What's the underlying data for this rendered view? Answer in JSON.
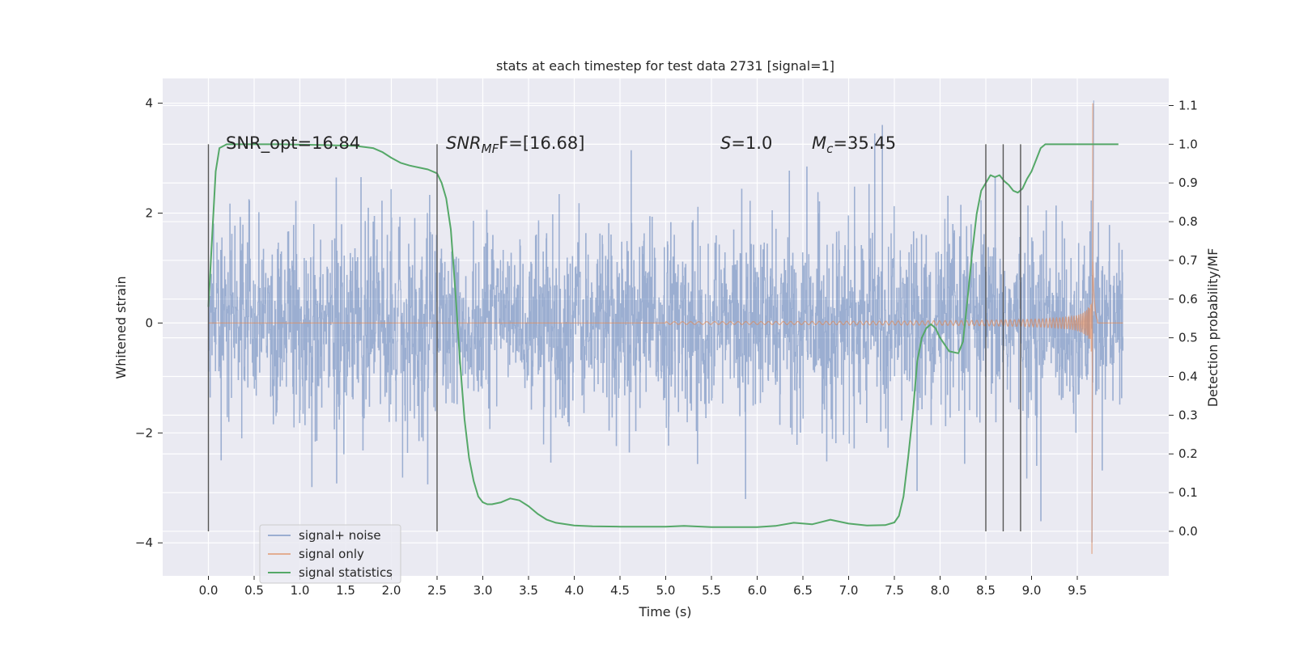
{
  "chart_data": {
    "type": "line",
    "title": "stats at each timestep for test data 2731 [signal=1]",
    "xlabel": "Time (s)",
    "ylabel": "Whitened strain",
    "y2label": "Detection probability/MF",
    "xlim": [
      -0.5,
      10.5
    ],
    "ylim": [
      -4.6,
      4.45
    ],
    "y2lim": [
      -0.115,
      1.17
    ],
    "x_ticks": [
      "0.0",
      "0.5",
      "1.0",
      "1.5",
      "2.0",
      "2.5",
      "3.0",
      "3.5",
      "4.0",
      "4.5",
      "5.0",
      "5.5",
      "6.0",
      "6.5",
      "7.0",
      "7.5",
      "8.0",
      "8.5",
      "9.0",
      "9.5"
    ],
    "y_ticks": [
      "−4",
      "−2",
      "0",
      "2",
      "4"
    ],
    "y2_ticks": [
      "0.0",
      "0.1",
      "0.2",
      "0.3",
      "0.4",
      "0.5",
      "0.6",
      "0.7",
      "0.8",
      "0.9",
      "1.0",
      "1.1"
    ],
    "grid": true,
    "legend_position": "lower-left",
    "annotations": {
      "snr_opt": "SNR_opt=16.84",
      "snr_mf_a": "SNR",
      "snr_mf_sub": "MF",
      "snr_mf_b": "F=[16.68]",
      "s_a": "S",
      "s_b": "=1.0",
      "mc_a": "M",
      "mc_sub": "c",
      "mc_b": "=35.45"
    },
    "vlines_x": [
      0.0,
      2.5,
      8.5,
      8.69,
      8.88
    ],
    "series": [
      {
        "name": "signal+ noise",
        "color": "#4c72b0",
        "style": "noise band",
        "duration_s": 10.0,
        "typical_range": [
          -1.5,
          1.9
        ],
        "peak_range": [
          -4.0,
          4.05
        ],
        "x_peak_max": 9.68,
        "y_peak_max": 4.05,
        "x_peak_min": 9.66,
        "y_peak_min": -4.0
      },
      {
        "name": "signal only",
        "color": "#dd8452",
        "style": "chirp",
        "onset_s": 5.0,
        "merger_s": 9.67,
        "peak_range": [
          -4.2,
          4.0
        ]
      },
      {
        "name": "signal statistics",
        "color": "#55a868",
        "axis": "right",
        "x": [
          0.0,
          0.05,
          0.08,
          0.12,
          0.2,
          0.4,
          0.8,
          1.2,
          1.6,
          1.8,
          1.9,
          2.0,
          2.1,
          2.2,
          2.3,
          2.4,
          2.5,
          2.55,
          2.6,
          2.65,
          2.7,
          2.75,
          2.8,
          2.85,
          2.9,
          2.95,
          3.0,
          3.05,
          3.1,
          3.2,
          3.3,
          3.4,
          3.5,
          3.6,
          3.7,
          3.8,
          4.0,
          4.2,
          4.5,
          5.0,
          5.2,
          5.5,
          6.0,
          6.2,
          6.4,
          6.6,
          6.8,
          7.0,
          7.2,
          7.4,
          7.5,
          7.55,
          7.6,
          7.65,
          7.7,
          7.75,
          7.8,
          7.85,
          7.9,
          7.95,
          8.0,
          8.1,
          8.2,
          8.25,
          8.3,
          8.35,
          8.4,
          8.45,
          8.5,
          8.55,
          8.6,
          8.65,
          8.7,
          8.75,
          8.8,
          8.85,
          8.9,
          8.95,
          9.0,
          9.05,
          9.1,
          9.15,
          9.2,
          9.3,
          9.5,
          9.7,
          9.95
        ],
        "values": [
          0.58,
          0.8,
          0.93,
          0.99,
          1.0,
          1.0,
          1.0,
          0.998,
          0.996,
          0.99,
          0.98,
          0.965,
          0.952,
          0.945,
          0.94,
          0.935,
          0.925,
          0.9,
          0.86,
          0.78,
          0.62,
          0.44,
          0.29,
          0.19,
          0.13,
          0.09,
          0.075,
          0.07,
          0.07,
          0.075,
          0.085,
          0.08,
          0.065,
          0.045,
          0.03,
          0.022,
          0.015,
          0.013,
          0.012,
          0.012,
          0.014,
          0.011,
          0.011,
          0.014,
          0.022,
          0.018,
          0.03,
          0.02,
          0.015,
          0.016,
          0.023,
          0.04,
          0.09,
          0.19,
          0.3,
          0.44,
          0.5,
          0.525,
          0.535,
          0.525,
          0.5,
          0.465,
          0.46,
          0.49,
          0.6,
          0.72,
          0.82,
          0.88,
          0.9,
          0.92,
          0.915,
          0.92,
          0.905,
          0.895,
          0.88,
          0.875,
          0.885,
          0.91,
          0.93,
          0.96,
          0.99,
          1.0,
          1.0,
          1.0,
          1.0,
          1.0,
          1.0
        ]
      }
    ]
  }
}
